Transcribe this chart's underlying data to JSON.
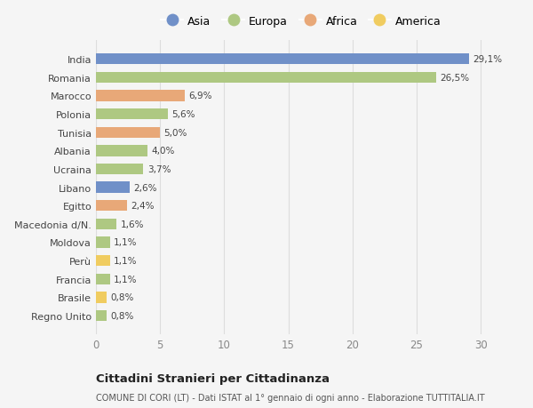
{
  "countries": [
    "India",
    "Romania",
    "Marocco",
    "Polonia",
    "Tunisia",
    "Albania",
    "Ucraina",
    "Libano",
    "Egitto",
    "Macedonia d/N.",
    "Moldova",
    "Perù",
    "Francia",
    "Brasile",
    "Regno Unito"
  ],
  "values": [
    29.1,
    26.5,
    6.9,
    5.6,
    5.0,
    4.0,
    3.7,
    2.6,
    2.4,
    1.6,
    1.1,
    1.1,
    1.1,
    0.8,
    0.8
  ],
  "labels": [
    "29,1%",
    "26,5%",
    "6,9%",
    "5,6%",
    "5,0%",
    "4,0%",
    "3,7%",
    "2,6%",
    "2,4%",
    "1,6%",
    "1,1%",
    "1,1%",
    "1,1%",
    "0,8%",
    "0,8%"
  ],
  "continents": [
    "Asia",
    "Europa",
    "Africa",
    "Europa",
    "Africa",
    "Europa",
    "Europa",
    "Asia",
    "Africa",
    "Europa",
    "Europa",
    "America",
    "Europa",
    "America",
    "Europa"
  ],
  "colors": {
    "Asia": "#7090c8",
    "Europa": "#aec882",
    "Africa": "#e8a878",
    "America": "#f0cc60"
  },
  "legend_order": [
    "Asia",
    "Europa",
    "Africa",
    "America"
  ],
  "title1": "Cittadini Stranieri per Cittadinanza",
  "title2": "COMUNE DI CORI (LT) - Dati ISTAT al 1° gennaio di ogni anno - Elaborazione TUTTITALIA.IT",
  "xlim": [
    0,
    32
  ],
  "xticks": [
    0,
    5,
    10,
    15,
    20,
    25,
    30
  ],
  "background_color": "#f5f5f5",
  "bar_height": 0.6
}
